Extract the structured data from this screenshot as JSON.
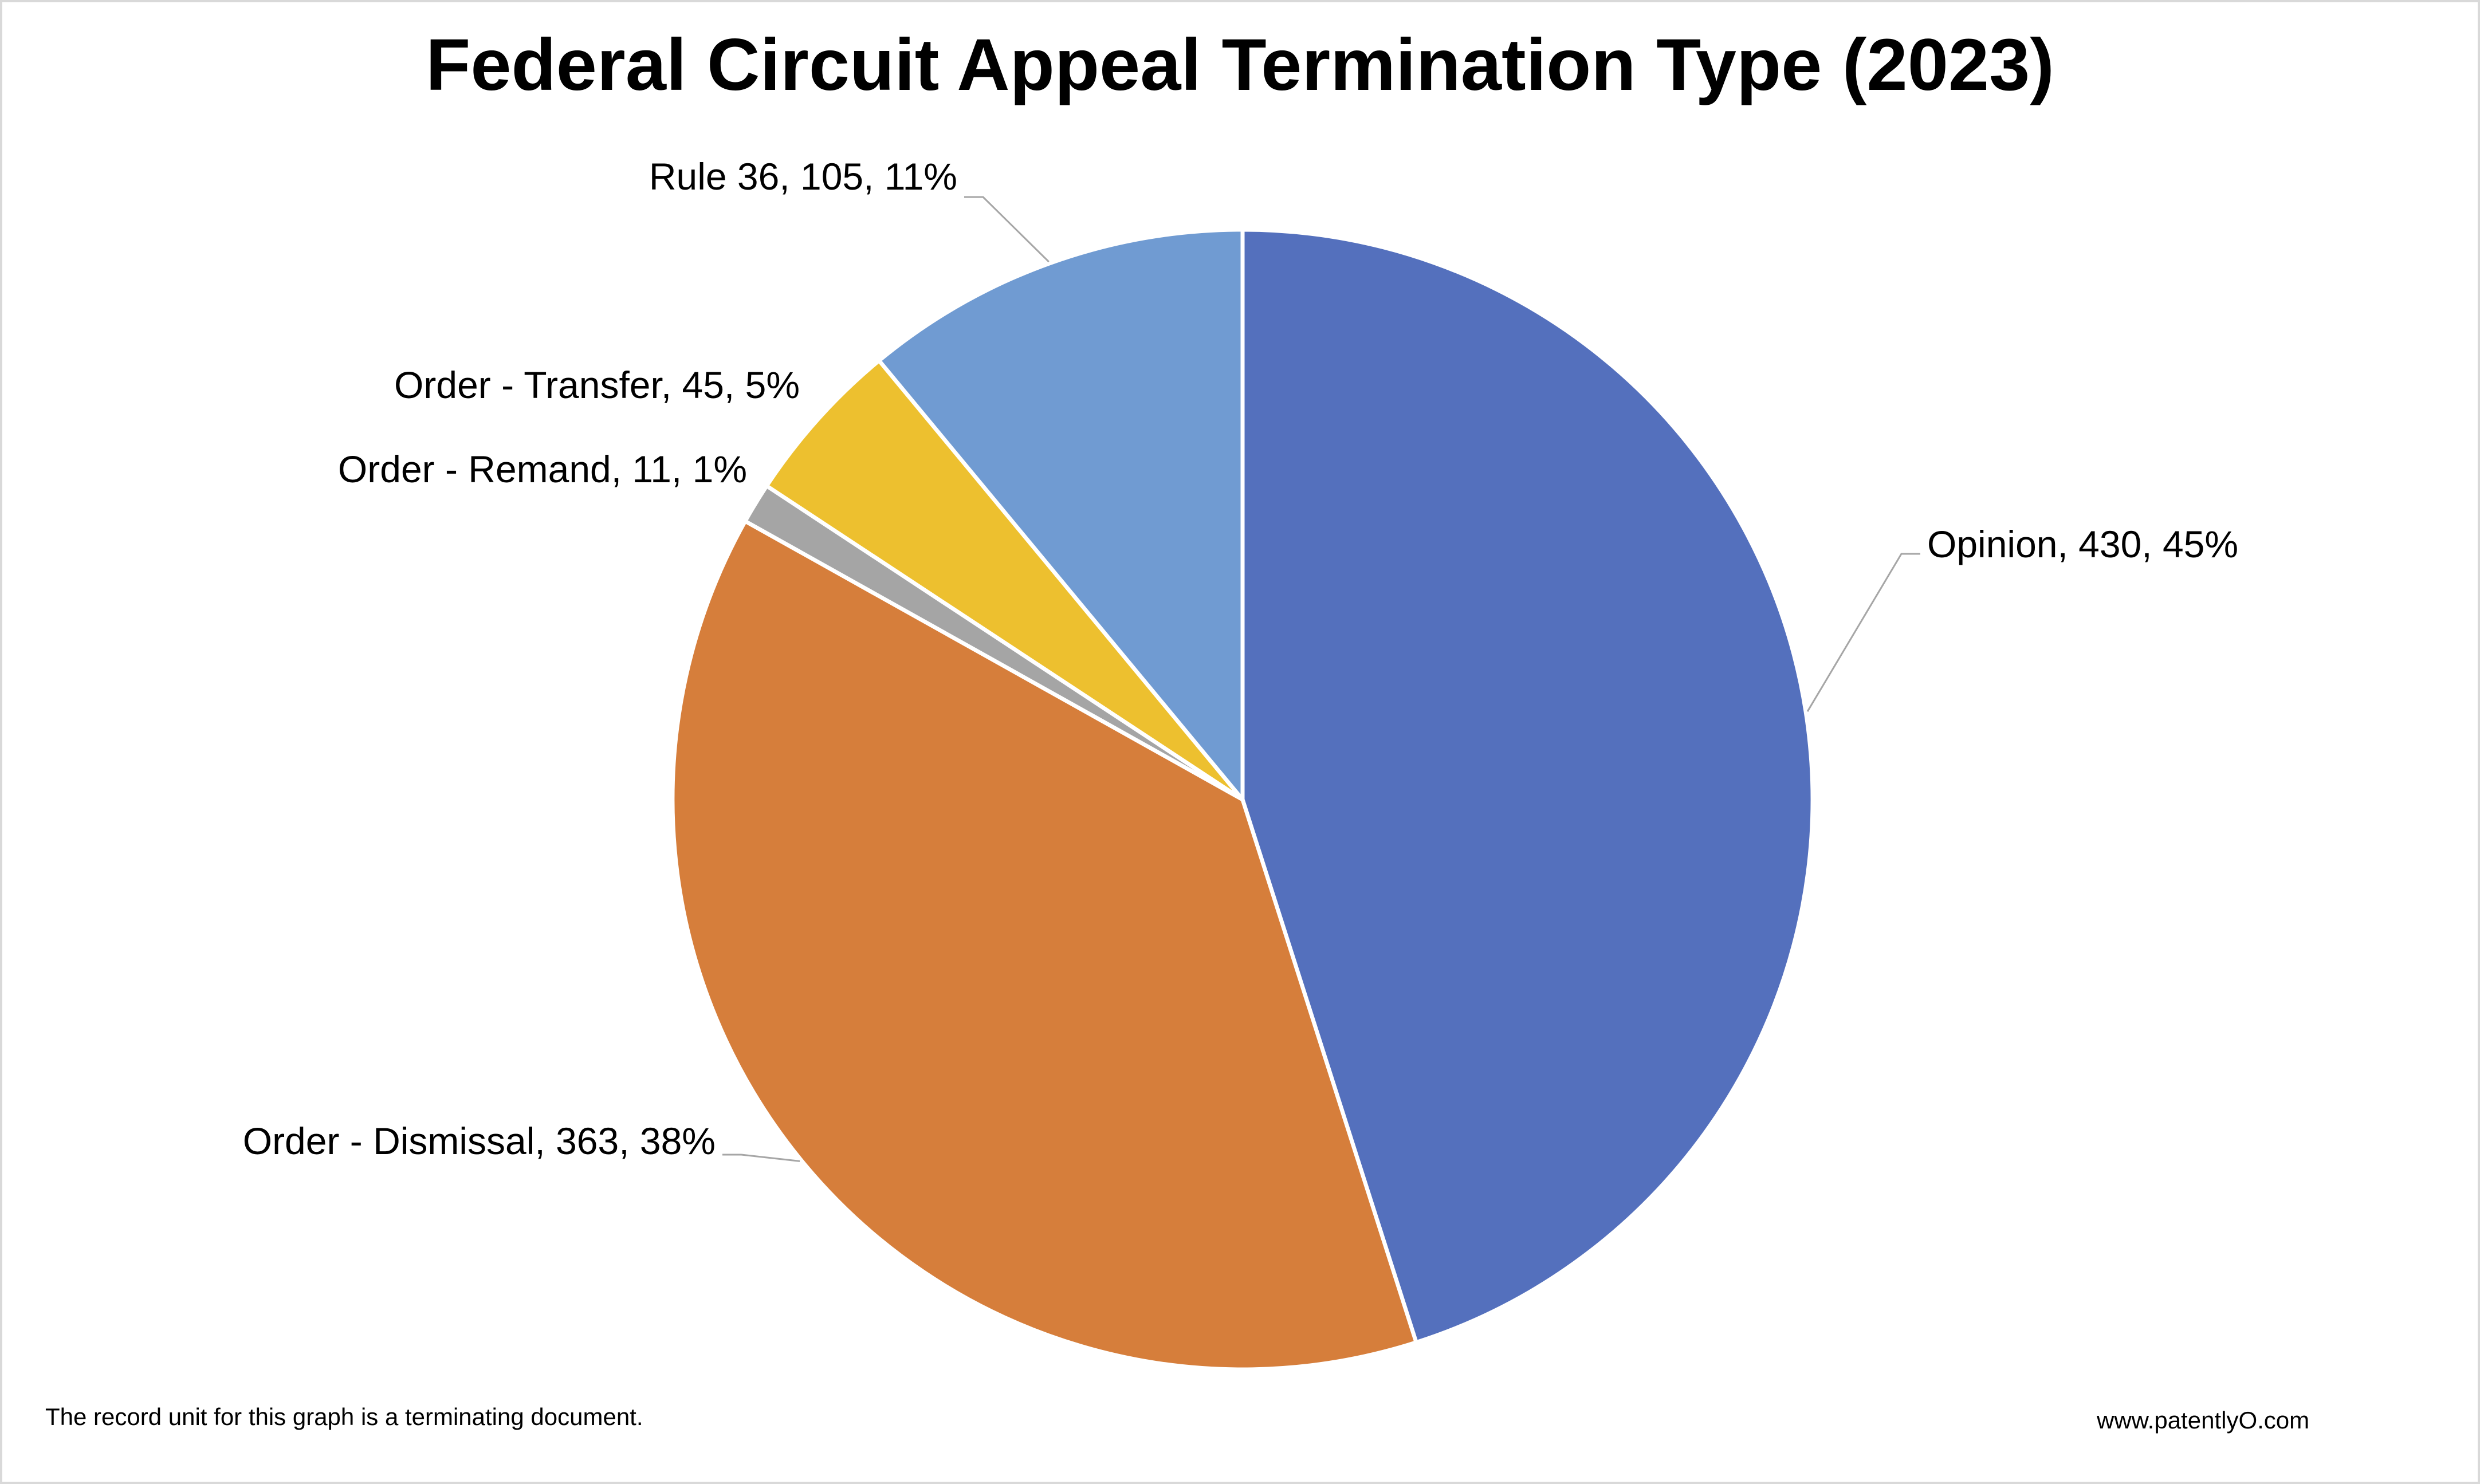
{
  "title": "Federal Circuit Appeal Termination Type (2023)",
  "footnote": "The record unit for this graph is a terminating document.",
  "website": "www.patentlyO.com",
  "chart_data": {
    "type": "pie",
    "title": "Federal Circuit Appeal Termination Type (2023)",
    "total": 954,
    "start_angle_deg": 0,
    "direction": "clockwise",
    "legend_position": "none",
    "data_label_format": "name, value, percent",
    "slice_border_color": "#FFFFFF",
    "leader_line_color": "#A6A6A6",
    "slices": [
      {
        "name": "Opinion",
        "value": 430,
        "percent": "45%",
        "label": "Opinion, 430, 45%",
        "color": "#5470BD"
      },
      {
        "name": "Order - Dismissal",
        "value": 363,
        "percent": "38%",
        "label": "Order - Dismissal, 363, 38%",
        "color": "#D67E3B"
      },
      {
        "name": "Order - Remand",
        "value": 11,
        "percent": "1%",
        "label": "Order - Remand, 11, 1%",
        "color": "#A5A5A5"
      },
      {
        "name": "Order - Transfer",
        "value": 45,
        "percent": "5%",
        "label": "Order - Transfer, 45, 5%",
        "color": "#EDC02F"
      },
      {
        "name": "Rule 36",
        "value": 105,
        "percent": "11%",
        "label": "Rule 36, 105, 11%",
        "color": "#709BD2"
      }
    ]
  }
}
